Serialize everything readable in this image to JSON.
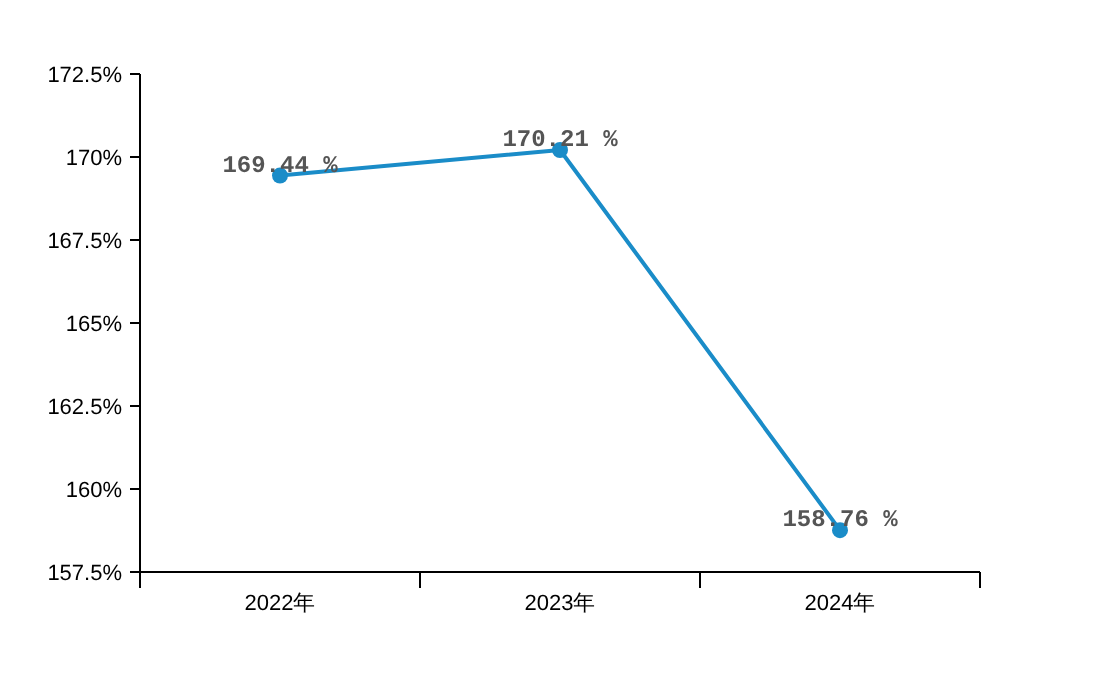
{
  "chart_data": {
    "type": "line",
    "categories": [
      "2022年",
      "2023年",
      "2024年"
    ],
    "values": [
      169.44,
      170.21,
      158.76
    ],
    "value_labels": [
      "169.44 %",
      "170.21 %",
      "158.76 %"
    ],
    "color": "#1a8cc8",
    "marker": "circle",
    "ylim": [
      157.5,
      172.5
    ],
    "yticks": [
      {
        "value": 157.5,
        "label": "157.5%"
      },
      {
        "value": 160,
        "label": "160%"
      },
      {
        "value": 162.5,
        "label": "162.5%"
      },
      {
        "value": 165,
        "label": "165%"
      },
      {
        "value": 167.5,
        "label": "167.5%"
      },
      {
        "value": 170,
        "label": "170%"
      },
      {
        "value": 172.5,
        "label": "172.5%"
      }
    ]
  }
}
